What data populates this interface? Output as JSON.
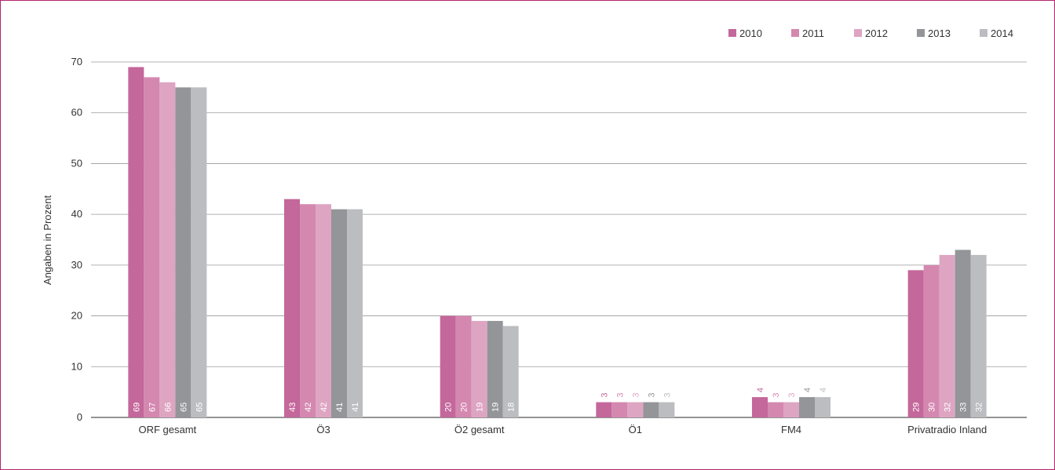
{
  "chart_data": {
    "type": "bar",
    "ylabel": "Angaben in Prozent",
    "xlabel": "",
    "ylim": [
      0,
      70
    ],
    "yticks": [
      0,
      10,
      20,
      30,
      40,
      50,
      60,
      70
    ],
    "grid": true,
    "legend_position": "top-right",
    "categories": [
      "ORF gesamt",
      "Ö3",
      "Ö2 gesamt",
      "Ö1",
      "FM4",
      "Privatradio Inland"
    ],
    "series": [
      {
        "name": "2010",
        "color": "#c4679b",
        "values": [
          69,
          43,
          20,
          3,
          4,
          29
        ]
      },
      {
        "name": "2011",
        "color": "#d488b0",
        "values": [
          67,
          42,
          20,
          3,
          3,
          30
        ]
      },
      {
        "name": "2012",
        "color": "#dea5c3",
        "values": [
          66,
          42,
          19,
          3,
          3,
          32
        ]
      },
      {
        "name": "2013",
        "color": "#939598",
        "values": [
          65,
          41,
          19,
          3,
          4,
          33
        ]
      },
      {
        "name": "2014",
        "color": "#bcbdc0",
        "values": [
          65,
          41,
          18,
          3,
          4,
          32
        ]
      }
    ]
  }
}
